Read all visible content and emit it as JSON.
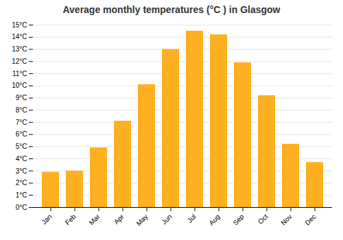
{
  "chart_data": {
    "type": "bar",
    "title": "Average monthly temperatures (°C ) in Glasgow",
    "categories": [
      "Jan",
      "Feb",
      "Mar",
      "Apr",
      "May",
      "Jun",
      "Jul",
      "Aug",
      "Sep",
      "Oct",
      "Nov",
      "Dec"
    ],
    "values": [
      2.9,
      3.0,
      4.9,
      7.1,
      10.1,
      13.0,
      14.5,
      14.2,
      11.9,
      9.2,
      5.2,
      3.7
    ],
    "color": "#FFB020",
    "ylim": [
      0,
      15
    ],
    "yticks": [
      {
        "value": 0,
        "label": "0°C"
      },
      {
        "value": 1,
        "label": "1°C"
      },
      {
        "value": 2,
        "label": "2°C"
      },
      {
        "value": 3,
        "label": "3°C"
      },
      {
        "value": 4,
        "label": "4°C"
      },
      {
        "value": 5,
        "label": "5°C"
      },
      {
        "value": 6,
        "label": "6°C"
      },
      {
        "value": 7,
        "label": "7°C"
      },
      {
        "value": 8,
        "label": "8°C"
      },
      {
        "value": 9,
        "label": "9°C"
      },
      {
        "value": 10,
        "label": "10°C"
      },
      {
        "value": 11,
        "label": "11°C"
      },
      {
        "value": 12,
        "label": "12°C"
      },
      {
        "value": 13,
        "label": "13°C"
      },
      {
        "value": 14,
        "label": "14°C"
      },
      {
        "value": 15,
        "label": "15°C"
      }
    ],
    "grid": true
  }
}
